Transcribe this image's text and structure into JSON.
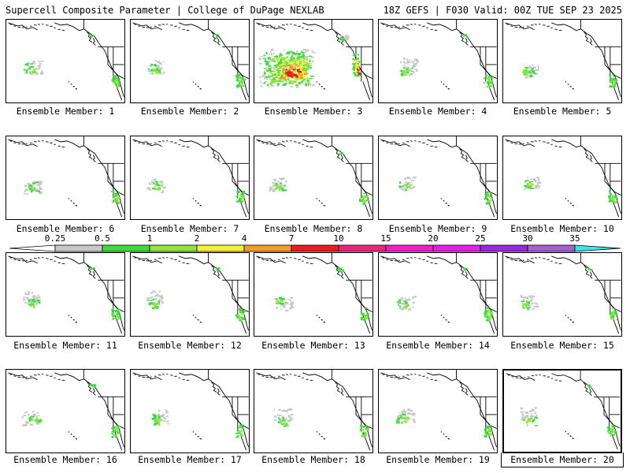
{
  "header": {
    "left": "Supercell Composite Parameter | College of DuPage NEXLAB",
    "right": "18Z GEFS | F030 Valid: 00Z TUE SEP 23 2025"
  },
  "members": [
    {
      "label": "Ensemble Member: 1",
      "member": 1,
      "intensity": "light"
    },
    {
      "label": "Ensemble Member: 2",
      "member": 2,
      "intensity": "light"
    },
    {
      "label": "Ensemble Member: 3",
      "member": 3,
      "intensity": "high"
    },
    {
      "label": "Ensemble Member: 4",
      "member": 4,
      "intensity": "light"
    },
    {
      "label": "Ensemble Member: 5",
      "member": 5,
      "intensity": "light"
    },
    {
      "label": "Ensemble Member: 6",
      "member": 6,
      "intensity": "light"
    },
    {
      "label": "Ensemble Member: 7",
      "member": 7,
      "intensity": "light"
    },
    {
      "label": "Ensemble Member: 8",
      "member": 8,
      "intensity": "light"
    },
    {
      "label": "Ensemble Member: 9",
      "member": 9,
      "intensity": "light"
    },
    {
      "label": "Ensemble Member: 10",
      "member": 10,
      "intensity": "light"
    },
    {
      "label": "Ensemble Member: 11",
      "member": 11,
      "intensity": "light"
    },
    {
      "label": "Ensemble Member: 12",
      "member": 12,
      "intensity": "light"
    },
    {
      "label": "Ensemble Member: 13",
      "member": 13,
      "intensity": "light"
    },
    {
      "label": "Ensemble Member: 14",
      "member": 14,
      "intensity": "light"
    },
    {
      "label": "Ensemble Member: 15",
      "member": 15,
      "intensity": "light"
    },
    {
      "label": "Ensemble Member: 16",
      "member": 16,
      "intensity": "light"
    },
    {
      "label": "Ensemble Member: 17",
      "member": 17,
      "intensity": "light"
    },
    {
      "label": "Ensemble Member: 18",
      "member": 18,
      "intensity": "light"
    },
    {
      "label": "Ensemble Member: 19",
      "member": 19,
      "intensity": "light"
    },
    {
      "label": "Ensemble Member: 20",
      "member": 20,
      "intensity": "light",
      "selected": true
    }
  ],
  "colorbar": {
    "ticks": [
      "0.25",
      "0.5",
      "1",
      "2",
      "4",
      "7",
      "10",
      "15",
      "20",
      "25",
      "30",
      "35"
    ],
    "colors": [
      "#ffffff",
      "#c8c8c8",
      "#3cdc3c",
      "#8ce63c",
      "#f5f03c",
      "#f59b28",
      "#e61e1e",
      "#e6287d",
      "#f01ec8",
      "#e61ee6",
      "#9b28dc",
      "#a55fd2",
      "#3ce6e6"
    ]
  }
}
